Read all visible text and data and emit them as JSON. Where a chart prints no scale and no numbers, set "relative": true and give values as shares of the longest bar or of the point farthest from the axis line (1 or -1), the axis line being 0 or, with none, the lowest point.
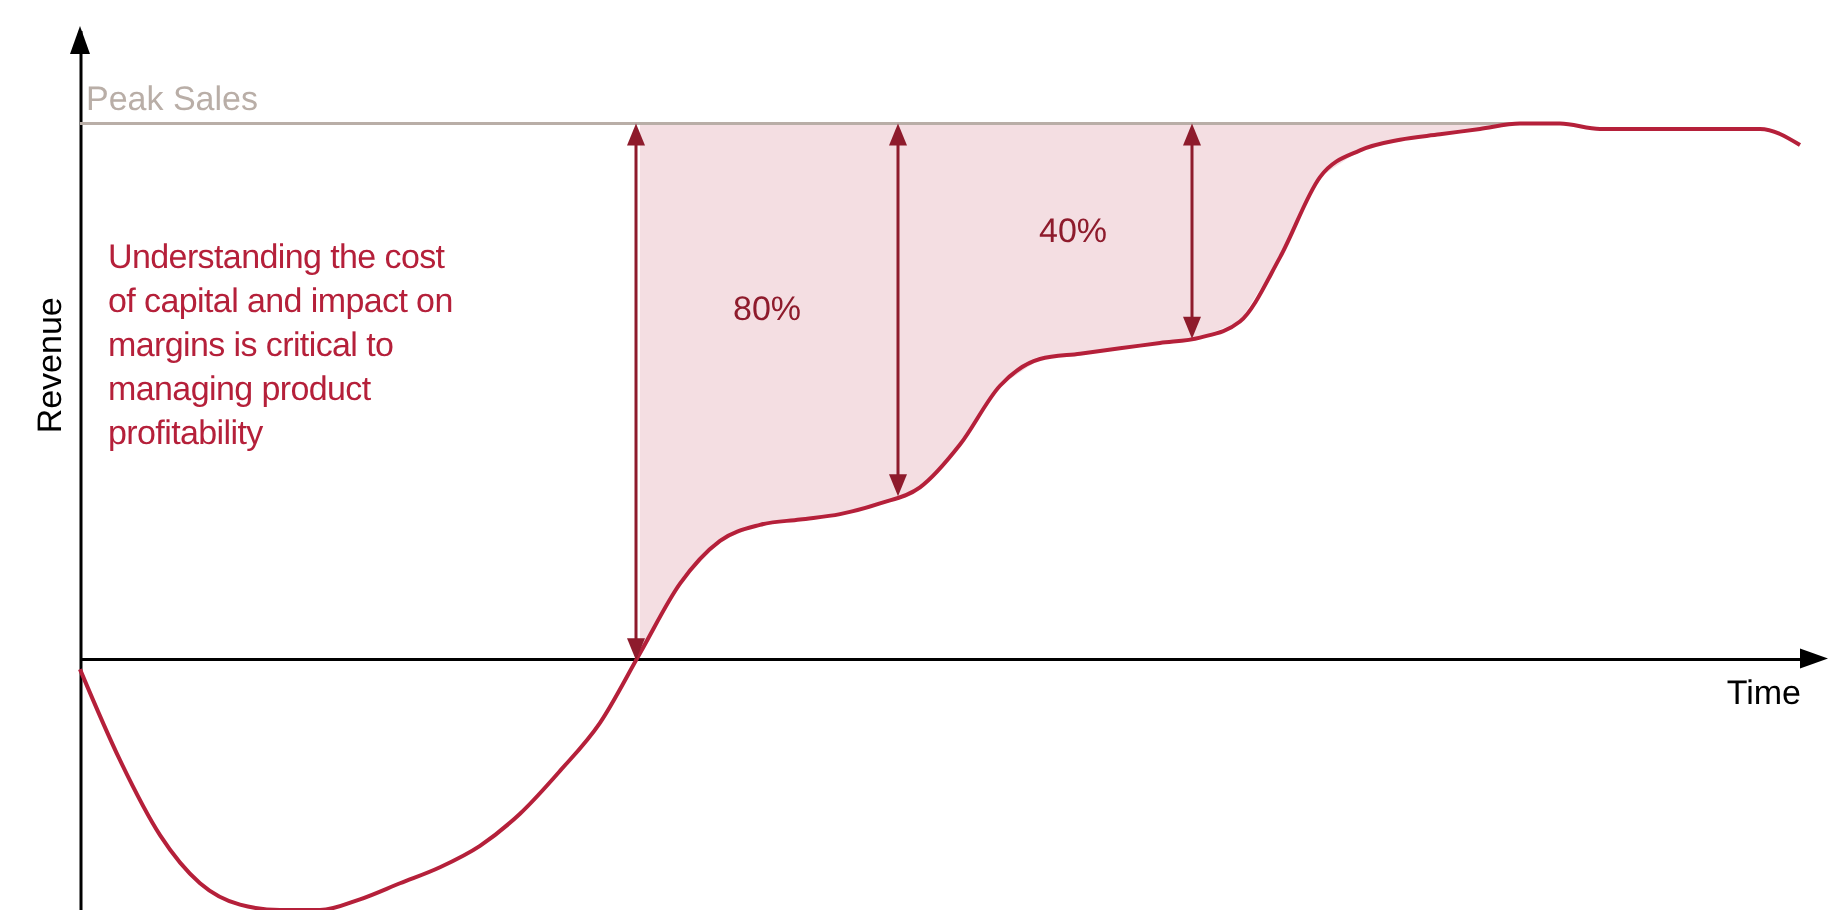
{
  "chart_data": {
    "type": "line",
    "relative": true,
    "xlabel": "Time",
    "ylabel": "Revenue",
    "grid": false,
    "tick_labels": false,
    "categories": [
      null,
      null,
      null,
      null,
      null,
      null,
      null,
      null,
      null,
      null,
      null,
      null,
      null,
      null,
      null,
      null,
      null,
      null,
      null,
      null,
      null,
      null,
      null,
      null,
      null,
      null,
      null,
      null,
      null,
      null,
      null,
      null,
      null,
      null,
      null,
      null,
      null,
      null,
      null,
      null,
      null,
      null,
      null,
      null
    ],
    "series": [
      {
        "color": "#b5203a",
        "values": [
          -0.02,
          -0.19,
          -0.33,
          -0.42,
          -0.46,
          -0.47,
          -0.47,
          -0.45,
          -0.42,
          -0.39,
          -0.35,
          -0.29,
          -0.21,
          -0.12,
          0.01,
          0.14,
          0.22,
          0.25,
          0.26,
          0.27,
          0.29,
          0.32,
          0.4,
          0.51,
          0.56,
          0.57,
          0.58,
          0.59,
          0.6,
          0.63,
          0.75,
          0.9,
          0.95,
          0.97,
          0.98,
          0.99,
          1,
          1,
          0.99,
          0.99,
          0.99,
          0.99,
          0.99,
          0.96
        ],
        "lower": [
          null,
          null,
          null,
          null,
          null,
          null,
          null,
          null,
          null,
          null,
          null,
          null,
          null,
          null,
          0.01,
          0.14,
          0.22,
          0.25,
          0.26,
          0.27,
          0.29,
          0.32,
          0.4,
          0.51,
          0.56,
          0.57,
          0.58,
          0.59,
          0.6,
          0.63,
          0.75,
          0.9,
          0.95,
          0.97,
          0.98,
          0.99,
          1,
          null,
          null,
          null,
          null,
          null,
          null,
          null
        ],
        "upper": [
          null,
          null,
          null,
          null,
          null,
          null,
          null,
          null,
          null,
          null,
          null,
          null,
          null,
          null,
          1,
          1,
          1,
          1,
          1,
          1,
          1,
          1,
          1,
          1,
          1,
          1,
          1,
          1,
          1,
          1,
          1,
          1,
          1,
          1,
          1,
          1,
          1,
          null,
          null,
          null,
          null,
          null,
          null,
          null
        ]
      }
    ],
    "ref_lines": [
      {
        "axis": "y",
        "value": 1,
        "label": "Peak Sales",
        "color": "#b9aea7"
      }
    ],
    "annotations": [
      "Understanding the cost of capital and impact on margins is critical to managing product profitability",
      "80%",
      "40%"
    ]
  }
}
